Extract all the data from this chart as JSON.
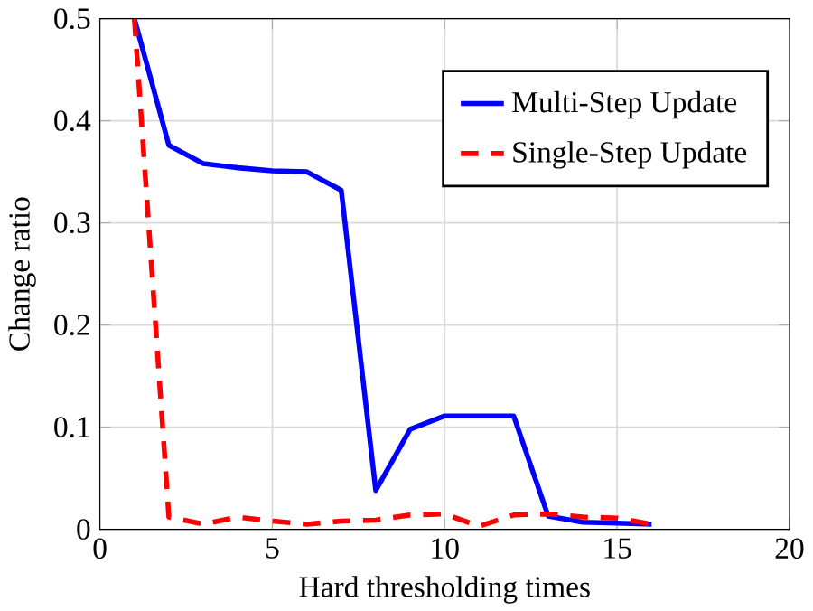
{
  "chart_data": {
    "type": "line",
    "xlabel": "Hard thresholding times",
    "ylabel": "Change ratio",
    "x": [
      1,
      2,
      3,
      4,
      5,
      6,
      7,
      8,
      9,
      10,
      11,
      12,
      13,
      14,
      15,
      16
    ],
    "series": [
      {
        "name": "Multi-Step Update",
        "color": "#0000ff",
        "line_style": "solid",
        "values": [
          0.5,
          0.376,
          0.358,
          0.354,
          0.351,
          0.35,
          0.332,
          0.038,
          0.098,
          0.111,
          0.111,
          0.111,
          0.013,
          0.007,
          0.006,
          0.005
        ]
      },
      {
        "name": "Single-Step Update",
        "color": "#ff0000",
        "line_style": "dashed",
        "values": [
          0.5,
          0.012,
          0.005,
          0.012,
          0.008,
          0.005,
          0.008,
          0.009,
          0.014,
          0.015,
          0.003,
          0.014,
          0.015,
          0.012,
          0.011,
          0.005
        ]
      }
    ],
    "xlim": [
      0,
      20
    ],
    "ylim": [
      0,
      0.5
    ],
    "xticks": [
      0,
      5,
      10,
      15,
      20
    ],
    "yticks": [
      0,
      0.1,
      0.2,
      0.3,
      0.4,
      0.5
    ],
    "grid": true,
    "legend": "top right"
  }
}
